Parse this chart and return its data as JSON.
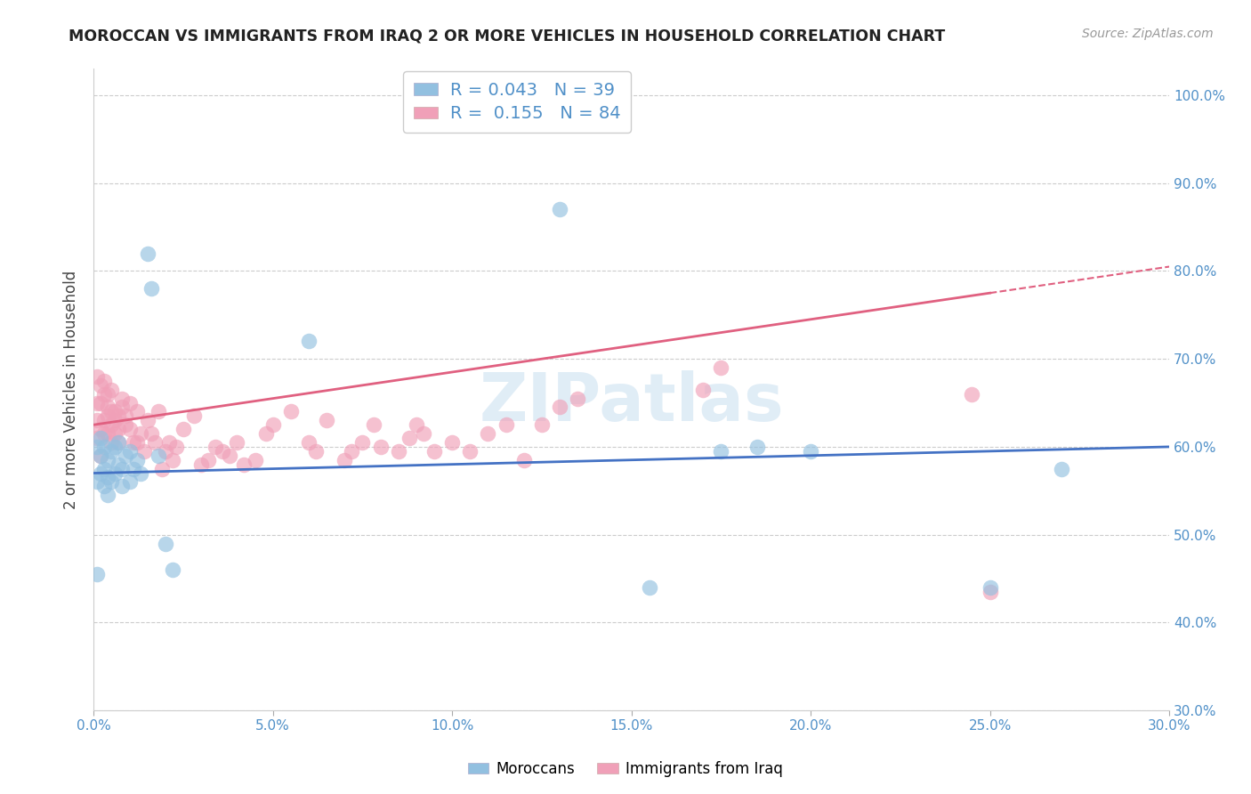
{
  "title": "MOROCCAN VS IMMIGRANTS FROM IRAQ 2 OR MORE VEHICLES IN HOUSEHOLD CORRELATION CHART",
  "source": "Source: ZipAtlas.com",
  "ylabel": "2 or more Vehicles in Household",
  "xlim": [
    0.0,
    0.3
  ],
  "ylim": [
    0.3,
    1.03
  ],
  "blue_color": "#92c0e0",
  "pink_color": "#f0a0b8",
  "blue_line_color": "#4472c4",
  "pink_line_color": "#e06080",
  "R_moroccan": 0.043,
  "N_moroccan": 39,
  "R_iraq": 0.155,
  "N_iraq": 84,
  "watermark": "ZIPatlas",
  "grid_color": "#cccccc",
  "background_color": "#ffffff",
  "moroccan_x": [
    0.001,
    0.001,
    0.001,
    0.002,
    0.002,
    0.002,
    0.003,
    0.003,
    0.003,
    0.004,
    0.004,
    0.004,
    0.005,
    0.005,
    0.006,
    0.006,
    0.007,
    0.007,
    0.008,
    0.008,
    0.009,
    0.01,
    0.01,
    0.011,
    0.012,
    0.013,
    0.015,
    0.016,
    0.018,
    0.02,
    0.022,
    0.06,
    0.13,
    0.155,
    0.175,
    0.185,
    0.2,
    0.25,
    0.27
  ],
  "moroccan_y": [
    0.455,
    0.56,
    0.6,
    0.57,
    0.59,
    0.61,
    0.555,
    0.575,
    0.6,
    0.545,
    0.565,
    0.585,
    0.56,
    0.595,
    0.57,
    0.6,
    0.58,
    0.605,
    0.555,
    0.575,
    0.59,
    0.56,
    0.595,
    0.575,
    0.585,
    0.57,
    0.82,
    0.78,
    0.59,
    0.49,
    0.46,
    0.72,
    0.87,
    0.44,
    0.595,
    0.6,
    0.595,
    0.44,
    0.575
  ],
  "iraq_x": [
    0.001,
    0.001,
    0.001,
    0.001,
    0.002,
    0.002,
    0.002,
    0.002,
    0.003,
    0.003,
    0.003,
    0.003,
    0.004,
    0.004,
    0.004,
    0.004,
    0.005,
    0.005,
    0.005,
    0.005,
    0.006,
    0.006,
    0.006,
    0.007,
    0.007,
    0.007,
    0.008,
    0.008,
    0.009,
    0.009,
    0.01,
    0.01,
    0.011,
    0.012,
    0.012,
    0.013,
    0.014,
    0.015,
    0.016,
    0.017,
    0.018,
    0.019,
    0.02,
    0.021,
    0.022,
    0.023,
    0.025,
    0.028,
    0.03,
    0.032,
    0.034,
    0.036,
    0.038,
    0.04,
    0.042,
    0.045,
    0.048,
    0.05,
    0.055,
    0.06,
    0.062,
    0.065,
    0.07,
    0.072,
    0.075,
    0.078,
    0.08,
    0.085,
    0.088,
    0.09,
    0.092,
    0.095,
    0.1,
    0.105,
    0.11,
    0.115,
    0.12,
    0.125,
    0.13,
    0.135,
    0.17,
    0.175,
    0.245,
    0.25
  ],
  "iraq_y": [
    0.61,
    0.65,
    0.63,
    0.68,
    0.62,
    0.65,
    0.67,
    0.59,
    0.63,
    0.66,
    0.615,
    0.675,
    0.635,
    0.645,
    0.615,
    0.66,
    0.64,
    0.605,
    0.625,
    0.665,
    0.615,
    0.64,
    0.63,
    0.635,
    0.605,
    0.62,
    0.645,
    0.655,
    0.625,
    0.635,
    0.62,
    0.65,
    0.605,
    0.64,
    0.605,
    0.615,
    0.595,
    0.63,
    0.615,
    0.605,
    0.64,
    0.575,
    0.595,
    0.605,
    0.585,
    0.6,
    0.62,
    0.635,
    0.58,
    0.585,
    0.6,
    0.595,
    0.59,
    0.605,
    0.58,
    0.585,
    0.615,
    0.625,
    0.64,
    0.605,
    0.595,
    0.63,
    0.585,
    0.595,
    0.605,
    0.625,
    0.6,
    0.595,
    0.61,
    0.625,
    0.615,
    0.595,
    0.605,
    0.595,
    0.615,
    0.625,
    0.585,
    0.625,
    0.645,
    0.655,
    0.665,
    0.69,
    0.66,
    0.435
  ]
}
